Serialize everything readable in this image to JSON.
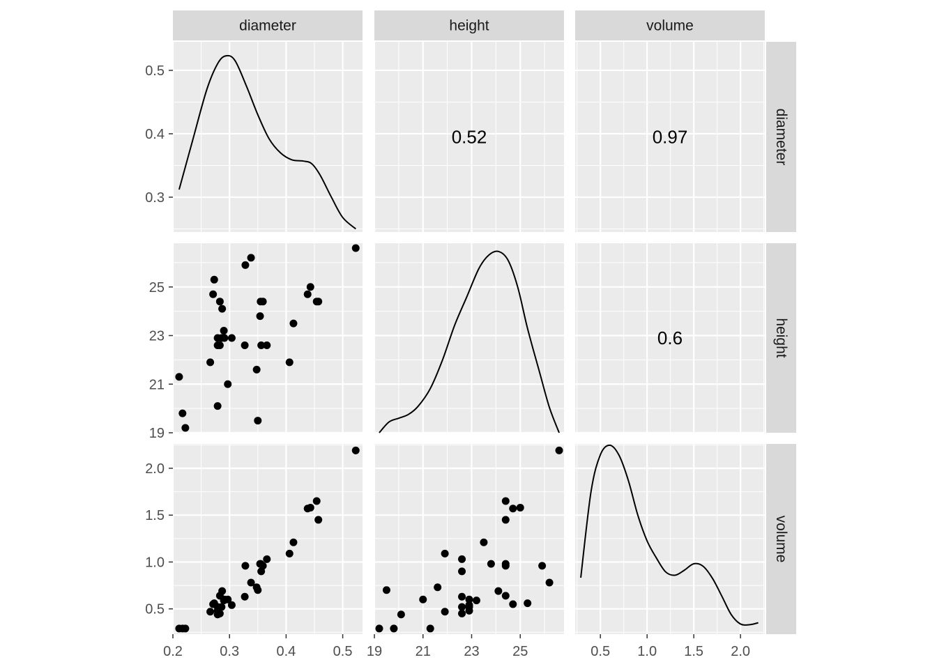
{
  "variables": [
    "diameter",
    "height",
    "volume"
  ],
  "chart_data": {
    "type": "scatter",
    "subtype": "pairs-matrix",
    "title": "",
    "strip_labels_top": [
      "diameter",
      "height",
      "volume"
    ],
    "strip_labels_right": [
      "diameter",
      "height",
      "volume"
    ],
    "axes": {
      "diameter": {
        "range": [
          0.2,
          0.535
        ],
        "ticks": [
          0.2,
          0.3,
          0.4,
          0.5
        ],
        "tick_labels": [
          "0.2",
          "0.3",
          "0.4",
          "0.5"
        ]
      },
      "height": {
        "range": [
          19,
          26.8
        ],
        "ticks": [
          19,
          21,
          23,
          25
        ],
        "tick_labels": [
          "19",
          "21",
          "23",
          "25"
        ]
      },
      "volume": {
        "range": [
          0.23,
          2.26
        ],
        "ticks": [
          0.5,
          1.0,
          1.5,
          2.0
        ],
        "tick_labels": [
          "0.5",
          "1.0",
          "1.5",
          "2.0"
        ]
      },
      "density_row_y": {
        "range": [
          0.245,
          0.545
        ],
        "ticks": [
          0.3,
          0.4,
          0.5
        ],
        "tick_labels": [
          "0.3",
          "0.4",
          "0.5"
        ]
      }
    },
    "correlations": [
      {
        "row": "diameter",
        "col": "height",
        "label": "0.52"
      },
      {
        "row": "diameter",
        "col": "volume",
        "label": "0.97"
      },
      {
        "row": "height",
        "col": "volume",
        "label": "0.6"
      }
    ],
    "points": {
      "diameter": [
        0.211,
        0.217,
        0.222,
        0.266,
        0.271,
        0.273,
        0.279,
        0.279,
        0.283,
        0.286,
        0.287,
        0.29,
        0.297,
        0.304,
        0.327,
        0.328,
        0.338,
        0.348,
        0.35,
        0.354,
        0.356,
        0.359,
        0.366,
        0.406,
        0.413,
        0.438,
        0.443,
        0.454,
        0.457,
        0.523,
        0.279,
        0.283,
        0.291,
        0.355
      ],
      "height": [
        21.3,
        19.8,
        19.2,
        21.9,
        24.7,
        25.3,
        20.1,
        22.9,
        24.4,
        22.9,
        24.1,
        23.2,
        21.0,
        22.9,
        22.6,
        25.9,
        26.2,
        21.6,
        19.5,
        23.8,
        22.6,
        24.4,
        22.6,
        21.9,
        23.5,
        24.7,
        25.0,
        24.4,
        24.4,
        26.6,
        22.6,
        22.6,
        22.9,
        24.4
      ],
      "volume": [
        0.29,
        0.29,
        0.29,
        0.47,
        0.55,
        0.56,
        0.44,
        0.48,
        0.64,
        0.52,
        0.69,
        0.59,
        0.6,
        0.54,
        0.63,
        0.96,
        0.78,
        0.73,
        0.7,
        0.98,
        0.9,
        0.96,
        1.03,
        1.09,
        1.21,
        1.57,
        1.58,
        1.65,
        1.45,
        2.19,
        0.52,
        0.45,
        0.6,
        0.98
      ]
    },
    "densities": {
      "diameter": {
        "x": [
          0.211,
          0.235,
          0.26,
          0.28,
          0.295,
          0.31,
          0.33,
          0.35,
          0.37,
          0.39,
          0.41,
          0.43,
          0.445,
          0.46,
          0.48,
          0.5,
          0.523
        ],
        "y": [
          0.312,
          0.39,
          0.47,
          0.512,
          0.523,
          0.515,
          0.475,
          0.43,
          0.392,
          0.37,
          0.359,
          0.357,
          0.353,
          0.335,
          0.3,
          0.268,
          0.25
        ]
      },
      "height": {
        "x": [
          19.2,
          19.6,
          20.0,
          20.4,
          20.8,
          21.3,
          21.8,
          22.3,
          22.8,
          23.3,
          23.7,
          24.1,
          24.5,
          24.9,
          25.3,
          25.8,
          26.2,
          26.6
        ],
        "y": [
          0.245,
          0.262,
          0.268,
          0.274,
          0.287,
          0.315,
          0.36,
          0.415,
          0.46,
          0.505,
          0.526,
          0.532,
          0.518,
          0.475,
          0.41,
          0.34,
          0.285,
          0.245
        ]
      },
      "volume": {
        "x": [
          0.29,
          0.4,
          0.5,
          0.6,
          0.7,
          0.8,
          0.9,
          1.0,
          1.1,
          1.2,
          1.3,
          1.4,
          1.5,
          1.6,
          1.7,
          1.8,
          1.9,
          2.0,
          2.1,
          2.19
        ],
        "y": [
          0.334,
          0.47,
          0.528,
          0.543,
          0.527,
          0.487,
          0.433,
          0.392,
          0.365,
          0.343,
          0.338,
          0.346,
          0.356,
          0.352,
          0.333,
          0.305,
          0.276,
          0.261,
          0.26,
          0.263
        ]
      }
    },
    "grid": true,
    "legend": "none"
  }
}
